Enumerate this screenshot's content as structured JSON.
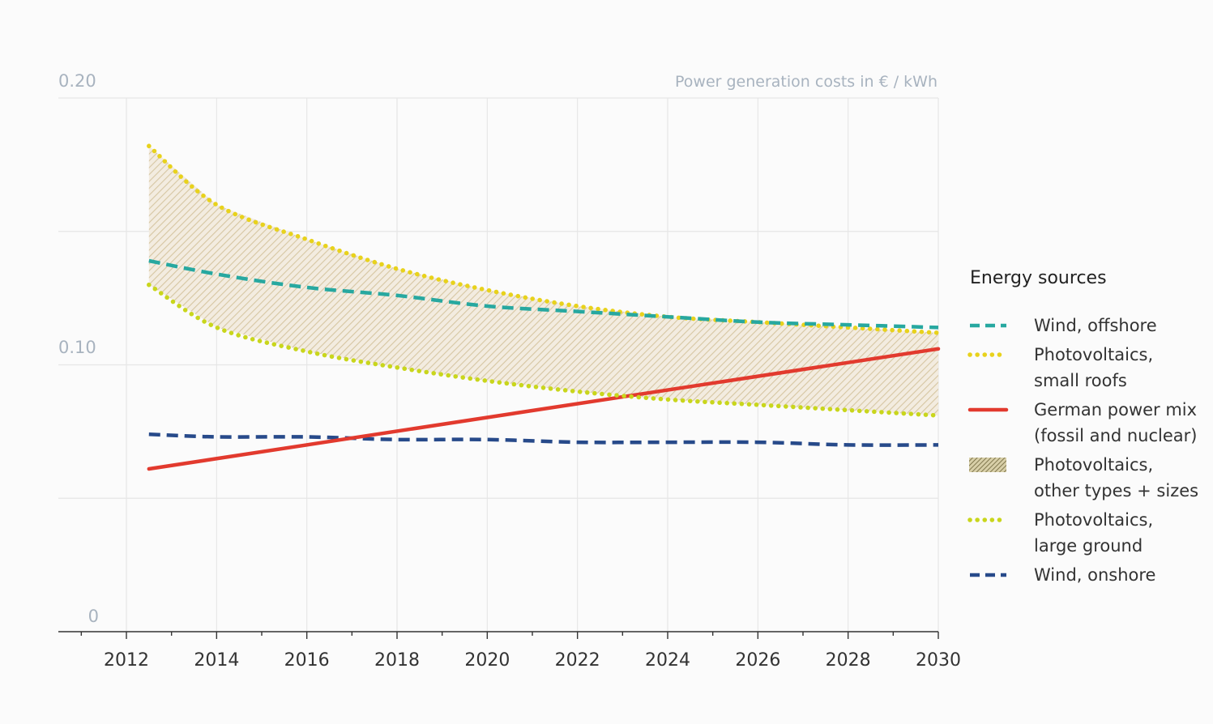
{
  "chart_data": {
    "type": "line",
    "unit_label": "Power generation costs in € / kWh",
    "x_ticks": [
      "2012",
      "2014",
      "2016",
      "2018",
      "2020",
      "2022",
      "2024",
      "2026",
      "2028",
      "2030"
    ],
    "y_tick_labels": [
      "0",
      "0.10",
      "0.20"
    ],
    "xlim": [
      2010.5,
      2030
    ],
    "ylim": [
      0,
      0.2
    ],
    "grid": true,
    "legend_title": "Energy sources",
    "legend_position": "right",
    "series": [
      {
        "name": "Wind, offshore",
        "style": "dashed",
        "color": "#27a8a0",
        "x": [
          2012.5,
          2014,
          2016,
          2018,
          2020,
          2022,
          2024,
          2026,
          2028,
          2030
        ],
        "values": [
          0.139,
          0.134,
          0.129,
          0.126,
          0.122,
          0.12,
          0.118,
          0.116,
          0.115,
          0.114
        ]
      },
      {
        "name": "Photovoltaics, small roofs",
        "style": "dotted",
        "color": "#e8d21c",
        "x": [
          2012.5,
          2014,
          2016,
          2018,
          2020,
          2022,
          2024,
          2026,
          2028,
          2030
        ],
        "values": [
          0.182,
          0.16,
          0.147,
          0.136,
          0.128,
          0.122,
          0.118,
          0.116,
          0.114,
          0.112
        ]
      },
      {
        "name": "German power mix (fossil and nuclear)",
        "style": "solid",
        "color": "#e23a2e",
        "x": [
          2012.5,
          2030
        ],
        "values": [
          0.061,
          0.106
        ]
      },
      {
        "name": "Photovoltaics, other types + sizes",
        "style": "hatched-band",
        "color": "#d9c8a0"
      },
      {
        "name": "Photovoltaics, large ground",
        "style": "dotted",
        "color": "#c9d61c",
        "x": [
          2012.5,
          2014,
          2016,
          2018,
          2020,
          2022,
          2024,
          2026,
          2028,
          2030
        ],
        "values": [
          0.13,
          0.114,
          0.105,
          0.099,
          0.094,
          0.09,
          0.087,
          0.085,
          0.083,
          0.081
        ]
      },
      {
        "name": "Wind, onshore",
        "style": "dashed",
        "color": "#274a8a",
        "x": [
          2012.5,
          2014,
          2016,
          2018,
          2020,
          2022,
          2024,
          2026,
          2028,
          2030
        ],
        "values": [
          0.074,
          0.073,
          0.073,
          0.072,
          0.072,
          0.071,
          0.071,
          0.071,
          0.07,
          0.07
        ]
      }
    ],
    "legend": {
      "title": "Energy sources",
      "items": [
        {
          "lines": [
            "Wind, offshore"
          ],
          "series": 0
        },
        {
          "lines": [
            "Photovoltaics,",
            "small roofs"
          ],
          "series": 1
        },
        {
          "lines": [
            "German power mix",
            "(fossil and nuclear)"
          ],
          "series": 2
        },
        {
          "lines": [
            "Photovoltaics,",
            "other types + sizes"
          ],
          "series": 3
        },
        {
          "lines": [
            "Photovoltaics,",
            "large ground"
          ],
          "series": 4
        },
        {
          "lines": [
            "Wind, onshore"
          ],
          "series": 5
        }
      ]
    }
  }
}
